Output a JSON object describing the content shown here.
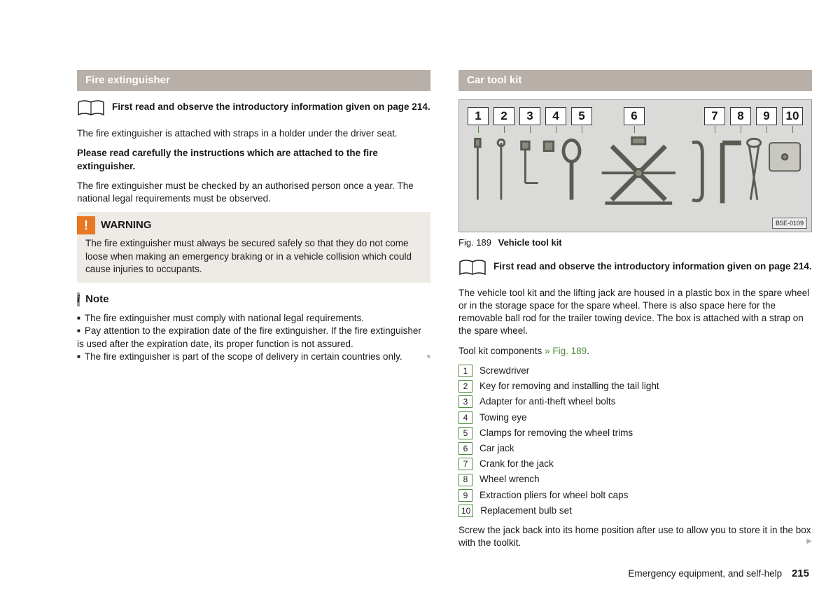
{
  "left": {
    "header": "Fire extinguisher",
    "readFirst": "First read and observe the introductory information given on page 214.",
    "p1": "The fire extinguisher is attached with straps in a holder under the driver seat.",
    "p2": "Please read carefully the instructions which are attached to the fire extinguisher.",
    "p3": "The fire extinguisher must be checked by an authorised person once a year. The national legal requirements must be observed.",
    "warning": {
      "title": "WARNING",
      "body": "The fire extinguisher must always be secured safely so that they do not come loose when making an emergency braking or in a vehicle collision which could cause injuries to occupants."
    },
    "note": {
      "title": "Note",
      "items": [
        "The fire extinguisher must comply with national legal requirements.",
        "Pay attention to the expiration date of the fire extinguisher. If the fire extinguisher is used after the expiration date, its proper function is not assured.",
        "The fire extinguisher is part of the scope of delivery in certain countries only."
      ]
    }
  },
  "right": {
    "header": "Car tool kit",
    "figure": {
      "labels": [
        "1",
        "2",
        "3",
        "4",
        "5",
        "6",
        "7",
        "8",
        "9",
        "10"
      ],
      "ref": "B5E-0109",
      "captionNum": "Fig. 189",
      "captionText": "Vehicle tool kit",
      "label_gaps_after": {
        "4": 38,
        "5": 78
      }
    },
    "readFirst": "First read and observe the introductory information given on page 214.",
    "p1": "The vehicle tool kit and the lifting jack are housed in a plastic box in the spare wheel or in the storage space for the spare wheel. There is also space here for the removable ball rod for the trailer towing device. The box is attached with a strap on the spare wheel.",
    "componentsIntro": "Tool kit components ",
    "componentsRef": "» Fig. 189",
    "tools": [
      {
        "n": "1",
        "t": "Screwdriver"
      },
      {
        "n": "2",
        "t": "Key for removing and installing the tail light"
      },
      {
        "n": "3",
        "t": "Adapter for anti-theft wheel bolts"
      },
      {
        "n": "4",
        "t": "Towing eye"
      },
      {
        "n": "5",
        "t": "Clamps for removing the wheel trims"
      },
      {
        "n": "6",
        "t": "Car jack"
      },
      {
        "n": "7",
        "t": "Crank for the jack"
      },
      {
        "n": "8",
        "t": "Wheel wrench"
      },
      {
        "n": "9",
        "t": "Extraction pliers for wheel bolt caps"
      },
      {
        "n": "10",
        "t": "Replacement bulb set"
      }
    ],
    "p2": "Screw the jack back into its home position after use to allow you to store it in the box with the toolkit."
  },
  "footer": {
    "chapter": "Emergency equipment, and self-help",
    "page": "215"
  },
  "colors": {
    "headerBg": "#b8afa8",
    "warnIcon": "#e87722",
    "infoIcon": "#9e9e9e",
    "green": "#4b8b3b",
    "figBg": "#dadbd8"
  }
}
